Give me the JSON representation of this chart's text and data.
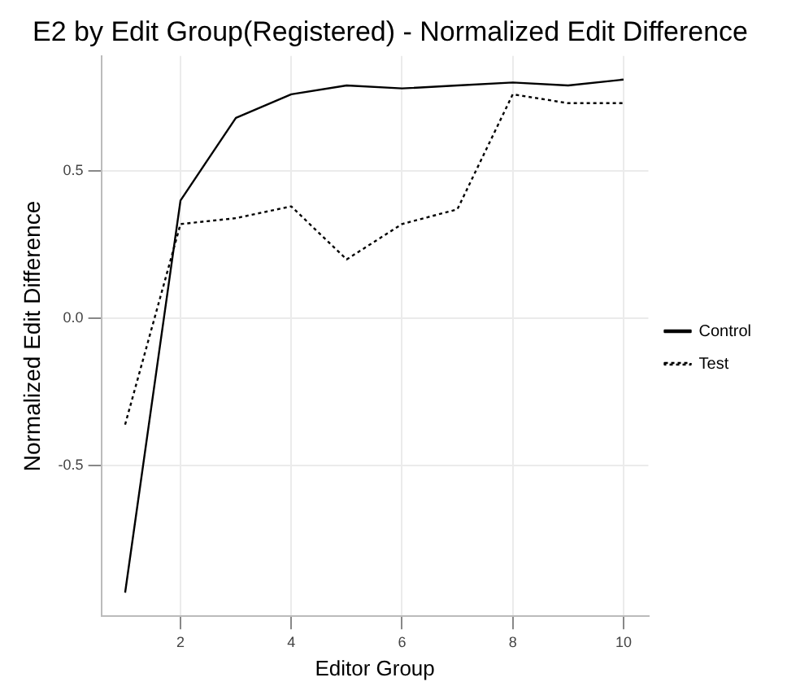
{
  "chart_data": {
    "type": "line",
    "title": "E2 by Edit Group(Registered) - Normalized Edit Difference",
    "xlabel": "Editor Group",
    "ylabel": "Normalized Edit Difference",
    "x": [
      1,
      2,
      3,
      4,
      5,
      6,
      7,
      8,
      9,
      10
    ],
    "series": [
      {
        "name": "Control",
        "color": "#000000",
        "line_style": "solid",
        "values": [
          -0.93,
          0.4,
          0.68,
          0.76,
          0.79,
          0.78,
          0.79,
          0.8,
          0.79,
          0.81
        ]
      },
      {
        "name": "Test",
        "color": "#000000",
        "line_style": "dotted",
        "values": [
          -0.36,
          0.32,
          0.34,
          0.38,
          0.2,
          0.32,
          0.37,
          0.76,
          0.73,
          0.73
        ]
      }
    ],
    "xlim": [
      0.57,
      10.45
    ],
    "xticks": [
      2,
      4,
      6,
      8,
      10
    ],
    "ylim": [
      -1.01,
      0.89
    ],
    "yticks": [
      -0.5,
      {
        "value": 0,
        "label": "0.0"
      },
      0.5
    ],
    "grid": true,
    "legend": "right",
    "marker": "none"
  }
}
